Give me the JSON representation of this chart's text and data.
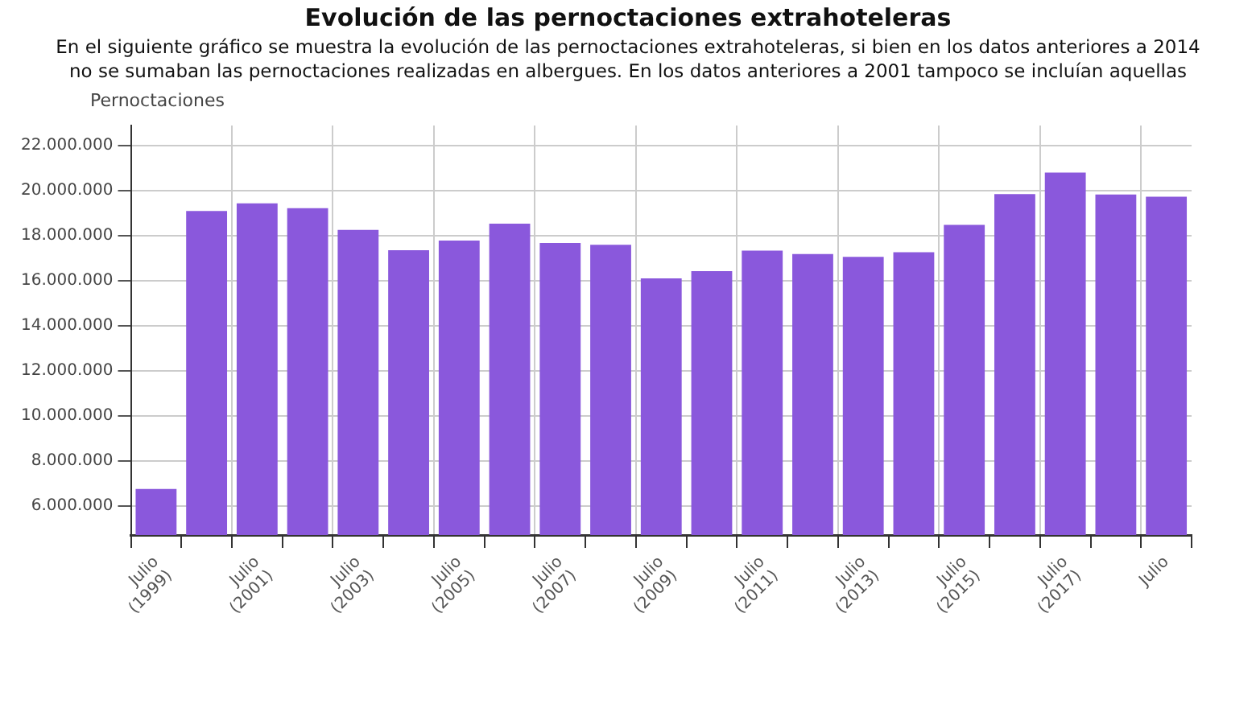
{
  "chart_data": {
    "type": "bar",
    "title": "Evolución de las pernoctaciones extrahoteleras",
    "subtitle": "En el siguiente gráfico se muestra la evolución de las pernoctaciones extrahoteleras, si bien en los datos anteriores a 2014 no se sumaban las pernoctaciones realizadas en albergues. En los datos anteriores a 2001 tampoco se incluían aquellas",
    "ylabel": "Pernoctaciones",
    "categories": [
      "Julio (1999)",
      null,
      "Julio (2001)",
      null,
      "Julio (2003)",
      null,
      "Julio (2005)",
      null,
      "Julio (2007)",
      null,
      "Julio (2009)",
      null,
      "Julio (2011)",
      null,
      "Julio (2013)",
      null,
      "Julio (2015)",
      null,
      "Julio (2017)",
      null,
      "Julio"
    ],
    "values": [
      6750000,
      19100000,
      19440000,
      19230000,
      18260000,
      17360000,
      17790000,
      18540000,
      17680000,
      17600000,
      16110000,
      16430000,
      17340000,
      17190000,
      17060000,
      17270000,
      18480000,
      19850000,
      20810000,
      19830000,
      19740000
    ],
    "color": "#8a58dc",
    "ylim": [
      4700000,
      22900000
    ],
    "yticks": [
      {
        "value": 6000000,
        "label": "6.000.000"
      },
      {
        "value": 8000000,
        "label": "8.000.000"
      },
      {
        "value": 10000000,
        "label": "10.000.000"
      },
      {
        "value": 12000000,
        "label": "12.000.000"
      },
      {
        "value": 14000000,
        "label": "14.000.000"
      },
      {
        "value": 16000000,
        "label": "16.000.000"
      },
      {
        "value": 18000000,
        "label": "18.000.000"
      },
      {
        "value": 20000000,
        "label": "20.000.000"
      },
      {
        "value": 22000000,
        "label": "22.000.000"
      }
    ],
    "grid": true,
    "legend": false
  }
}
